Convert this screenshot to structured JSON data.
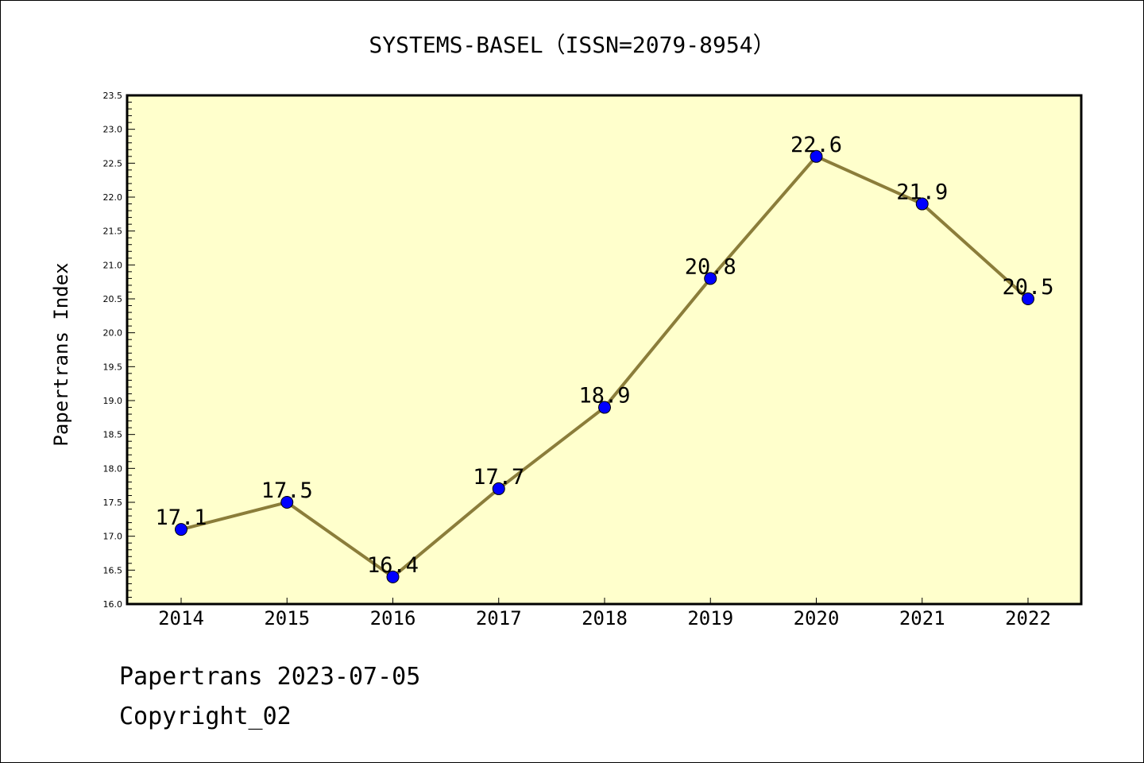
{
  "chart_data": {
    "type": "line",
    "title": "SYSTEMS-BASEL（ISSN=2079-8954）",
    "xlabel": "",
    "ylabel": "Papertrans Index",
    "categories": [
      "2014",
      "2015",
      "2016",
      "2017",
      "2018",
      "2019",
      "2020",
      "2021",
      "2022"
    ],
    "series": [
      {
        "values": [
          17.1,
          17.5,
          16.4,
          17.7,
          18.9,
          20.8,
          22.6,
          21.9,
          20.5
        ],
        "data_labels": [
          "17.1",
          "17.5",
          "16.4",
          "17.7",
          "18.9",
          "20.8",
          "22.6",
          "21.9",
          "20.5"
        ],
        "line_color": "#8b7d3a",
        "marker_color": "#0000ff"
      }
    ],
    "ylim": [
      16.0,
      23.5
    ],
    "ytick_labels": [
      "16.0",
      "16.5",
      "17.0",
      "17.5",
      "18.0",
      "18.5",
      "19.0",
      "19.5",
      "20.0",
      "20.5",
      "21.0",
      "21.5",
      "22.0",
      "22.5",
      "23.0",
      "23.5"
    ],
    "plot_background": "#ffffcc",
    "grid": false,
    "legend": "none"
  },
  "footer": {
    "line1": "Papertrans 2023-07-05",
    "line2": "Copyright_02"
  }
}
